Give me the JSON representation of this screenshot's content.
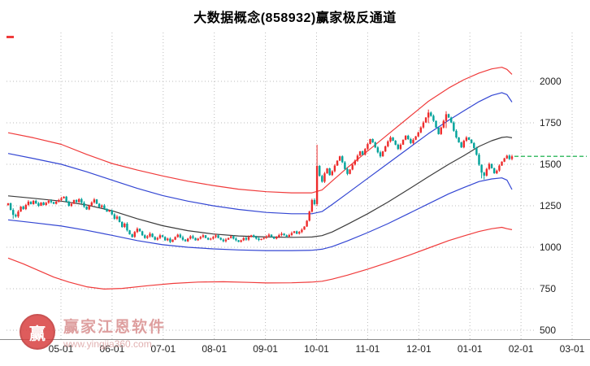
{
  "title": "大数据概念(858932)赢家极反通道",
  "watermark": {
    "brand": "赢家江恩软件",
    "url": "www.yingjia360.com",
    "logo_char": "赢"
  },
  "colors": {
    "title": "#000000",
    "up": "#ee2c2c",
    "down": "#00a29a",
    "band_red": "#f03b3b",
    "band_blue": "#3346d3",
    "band_mid": "#3c3c3c",
    "grid": "#bbbbbb",
    "axis": "#8a8a8a",
    "text": "#222222",
    "last_price": "#00a838",
    "watermark": "#d98f8f",
    "watermark_light": "#dca4a4",
    "logo": "#d94040"
  },
  "chart_data": {
    "type": "candlestick",
    "title": "大数据概念(858932)赢家极反通道",
    "xlabel": "",
    "ylabel": "",
    "ylim": [
      500,
      2000
    ],
    "grid": true,
    "y_ticks": [
      500,
      750,
      1000,
      1250,
      1500,
      1750,
      2000
    ],
    "x_tick_labels": [
      "05-01",
      "06-01",
      "07-01",
      "08-01",
      "09-01",
      "10-01",
      "11-01",
      "12-01",
      "01-01",
      "02-01",
      "03-01"
    ],
    "close": [
      1265,
      1225,
      1195,
      1185,
      1215,
      1245,
      1230,
      1255,
      1275,
      1260,
      1280,
      1265,
      1250,
      1270,
      1255,
      1268,
      1280,
      1272,
      1262,
      1275,
      1285,
      1295,
      1305,
      1275,
      1250,
      1262,
      1285,
      1272,
      1290,
      1268,
      1245,
      1228,
      1252,
      1270,
      1288,
      1262,
      1242,
      1252,
      1232,
      1215,
      1222,
      1198,
      1172,
      1185,
      1152,
      1122,
      1142,
      1102,
      1078,
      1062,
      1092,
      1112,
      1096,
      1072,
      1056,
      1066,
      1082,
      1062,
      1046,
      1056,
      1072,
      1062,
      1042,
      1052,
      1032,
      1046,
      1062,
      1076,
      1060,
      1046,
      1036,
      1052,
      1066,
      1056,
      1042,
      1052,
      1062,
      1072,
      1056,
      1046,
      1052,
      1062,
      1072,
      1056,
      1046,
      1036,
      1046,
      1056,
      1066,
      1052,
      1042,
      1032,
      1042,
      1056,
      1046,
      1062,
      1072,
      1062,
      1052,
      1044,
      1050,
      1056,
      1066,
      1076,
      1062,
      1052,
      1062,
      1074,
      1082,
      1072,
      1064,
      1074,
      1086,
      1096,
      1082,
      1092,
      1106,
      1125,
      1160,
      1215,
      1285,
      1260,
      1490,
      1430,
      1395,
      1445,
      1475,
      1435,
      1458,
      1492,
      1522,
      1548,
      1512,
      1472,
      1442,
      1468,
      1498,
      1522,
      1552,
      1578,
      1558,
      1592,
      1622,
      1652,
      1632,
      1602,
      1572,
      1548,
      1578,
      1608,
      1638,
      1662,
      1642,
      1618,
      1592,
      1618,
      1648,
      1672,
      1652,
      1628,
      1648,
      1668,
      1692,
      1722,
      1752,
      1782,
      1812,
      1792,
      1762,
      1722,
      1682,
      1722,
      1762,
      1802,
      1782,
      1752,
      1702,
      1662,
      1632,
      1602,
      1642,
      1662,
      1648,
      1628,
      1598,
      1558,
      1498,
      1450,
      1432,
      1472,
      1502,
      1476,
      1446,
      1462,
      1492,
      1516,
      1536,
      1552,
      1532,
      1548
    ],
    "wick_overrides": {
      "2": [
        1235,
        1172
      ],
      "122": [
        1618,
        1248
      ],
      "166": [
        1830,
        1748
      ],
      "173": [
        1820,
        1718
      ],
      "187": [
        1470,
        1415
      ],
      "188": [
        1455,
        1408
      ]
    },
    "last_price": 1548,
    "bands": {
      "upper_red": {
        "color": "band_red",
        "points": [
          [
            0,
            1690
          ],
          [
            10,
            1660
          ],
          [
            21,
            1620
          ],
          [
            31,
            1560
          ],
          [
            41,
            1505
          ],
          [
            51,
            1465
          ],
          [
            61,
            1430
          ],
          [
            71,
            1398
          ],
          [
            81,
            1372
          ],
          [
            91,
            1350
          ],
          [
            102,
            1335
          ],
          [
            112,
            1328
          ],
          [
            120,
            1328
          ],
          [
            124,
            1345
          ],
          [
            128,
            1400
          ],
          [
            134,
            1480
          ],
          [
            142,
            1580
          ],
          [
            150,
            1680
          ],
          [
            158,
            1780
          ],
          [
            166,
            1880
          ],
          [
            174,
            1960
          ],
          [
            180,
            2010
          ],
          [
            186,
            2050
          ],
          [
            191,
            2075
          ],
          [
            195,
            2085
          ],
          [
            197,
            2072
          ],
          [
            199,
            2042
          ]
        ]
      },
      "upper_blue": {
        "color": "band_blue",
        "points": [
          [
            0,
            1565
          ],
          [
            10,
            1535
          ],
          [
            21,
            1500
          ],
          [
            31,
            1455
          ],
          [
            41,
            1405
          ],
          [
            51,
            1355
          ],
          [
            61,
            1312
          ],
          [
            71,
            1278
          ],
          [
            81,
            1250
          ],
          [
            91,
            1228
          ],
          [
            102,
            1210
          ],
          [
            112,
            1202
          ],
          [
            120,
            1202
          ],
          [
            124,
            1215
          ],
          [
            128,
            1258
          ],
          [
            134,
            1325
          ],
          [
            142,
            1415
          ],
          [
            150,
            1505
          ],
          [
            158,
            1595
          ],
          [
            166,
            1685
          ],
          [
            174,
            1765
          ],
          [
            180,
            1822
          ],
          [
            186,
            1878
          ],
          [
            191,
            1915
          ],
          [
            195,
            1932
          ],
          [
            197,
            1920
          ],
          [
            199,
            1875
          ]
        ]
      },
      "mid": {
        "color": "band_mid",
        "points": [
          [
            0,
            1310
          ],
          [
            10,
            1295
          ],
          [
            21,
            1278
          ],
          [
            31,
            1255
          ],
          [
            41,
            1220
          ],
          [
            51,
            1172
          ],
          [
            61,
            1130
          ],
          [
            71,
            1100
          ],
          [
            81,
            1080
          ],
          [
            91,
            1068
          ],
          [
            102,
            1062
          ],
          [
            112,
            1060
          ],
          [
            120,
            1062
          ],
          [
            124,
            1070
          ],
          [
            128,
            1092
          ],
          [
            134,
            1138
          ],
          [
            142,
            1202
          ],
          [
            150,
            1272
          ],
          [
            158,
            1348
          ],
          [
            166,
            1425
          ],
          [
            174,
            1500
          ],
          [
            180,
            1552
          ],
          [
            186,
            1608
          ],
          [
            191,
            1642
          ],
          [
            195,
            1662
          ],
          [
            197,
            1665
          ],
          [
            199,
            1660
          ]
        ]
      },
      "lower_blue": {
        "color": "band_blue",
        "points": [
          [
            0,
            1165
          ],
          [
            10,
            1148
          ],
          [
            21,
            1128
          ],
          [
            31,
            1102
          ],
          [
            41,
            1072
          ],
          [
            51,
            1040
          ],
          [
            61,
            1015
          ],
          [
            71,
            1000
          ],
          [
            81,
            990
          ],
          [
            91,
            984
          ],
          [
            102,
            980
          ],
          [
            112,
            980
          ],
          [
            120,
            982
          ],
          [
            124,
            988
          ],
          [
            128,
            1004
          ],
          [
            134,
            1038
          ],
          [
            142,
            1088
          ],
          [
            150,
            1142
          ],
          [
            158,
            1202
          ],
          [
            166,
            1262
          ],
          [
            174,
            1322
          ],
          [
            180,
            1360
          ],
          [
            186,
            1396
          ],
          [
            191,
            1412
          ],
          [
            195,
            1418
          ],
          [
            197,
            1405
          ],
          [
            199,
            1348
          ]
        ]
      },
      "lower_red": {
        "color": "band_red",
        "points": [
          [
            0,
            935
          ],
          [
            6,
            900
          ],
          [
            12,
            860
          ],
          [
            18,
            820
          ],
          [
            24,
            790
          ],
          [
            31,
            762
          ],
          [
            38,
            748
          ],
          [
            45,
            752
          ],
          [
            55,
            768
          ],
          [
            65,
            782
          ],
          [
            75,
            790
          ],
          [
            85,
            792
          ],
          [
            95,
            788
          ],
          [
            102,
            785
          ],
          [
            112,
            786
          ],
          [
            120,
            790
          ],
          [
            124,
            795
          ],
          [
            128,
            808
          ],
          [
            134,
            832
          ],
          [
            142,
            868
          ],
          [
            150,
            908
          ],
          [
            158,
            950
          ],
          [
            166,
            995
          ],
          [
            174,
            1040
          ],
          [
            180,
            1068
          ],
          [
            186,
            1095
          ],
          [
            191,
            1112
          ],
          [
            195,
            1120
          ],
          [
            197,
            1112
          ],
          [
            199,
            1106
          ]
        ]
      }
    }
  }
}
